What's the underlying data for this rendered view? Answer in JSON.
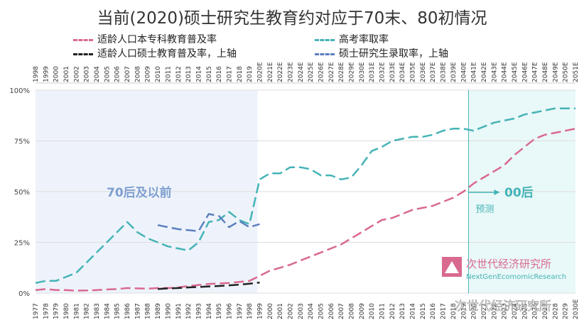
{
  "title": "当前(2020)硕士研究生教育约对应于70末、80初情况",
  "legend": [
    {
      "label": "适龄人口本专科教育普及率",
      "color": "#d9698f"
    },
    {
      "label": "高考率取率",
      "color": "#45b3b6"
    },
    {
      "label": "适龄人口硕士教育普及率，上轴",
      "color": "#222222"
    },
    {
      "label": "硕士研究生录取率，上轴",
      "color": "#5b7fbf"
    }
  ],
  "annotations": {
    "era_left": "70后及以前",
    "era_right": "00后",
    "forecast": "预测"
  },
  "watermark": {
    "name": "次世代经济研究所",
    "sub": "NextGenEcomomicResearch",
    "overlay": "次世代经济研究所"
  },
  "chart_data": {
    "type": "line",
    "title": "当前(2020)硕士研究生教育约对应于70末、80初情况",
    "y_ticks": [
      "0%",
      "25%",
      "50%",
      "75%",
      "100%"
    ],
    "ylim": [
      0,
      100
    ],
    "x_bottom_labels": [
      "1977",
      "1978",
      "1979",
      "1980",
      "1981",
      "1982",
      "1983",
      "1984",
      "1985",
      "1986",
      "1987",
      "1988",
      "1989",
      "1990",
      "1991",
      "1992",
      "1993",
      "1994",
      "1995",
      "1996",
      "1997",
      "1998",
      "1999",
      "2000",
      "2001",
      "2002",
      "2003",
      "2004",
      "2005",
      "2006",
      "2007",
      "2008",
      "2009",
      "2010",
      "2011",
      "2012",
      "2013",
      "2014",
      "2015",
      "2016",
      "2017",
      "2018",
      "2019",
      "2020",
      "2021",
      "2022",
      "2023",
      "2024",
      "2025",
      "2026",
      "2027",
      "2028",
      "2029",
      "2030E"
    ],
    "x_top_labels": [
      "1998",
      "1999",
      "2000",
      "2001",
      "2002",
      "2003",
      "2004",
      "2005",
      "2006",
      "2007",
      "2008",
      "2009",
      "2010",
      "2011",
      "2012",
      "2013",
      "2014",
      "2015",
      "2016",
      "2017",
      "2018",
      "2019",
      "2020E",
      "2021E",
      "2022E",
      "2023E",
      "2024E",
      "2025E",
      "2026E",
      "2027E",
      "2028E",
      "2029E",
      "2030E",
      "2031E",
      "2032E",
      "2033E",
      "2034E",
      "2035E",
      "2036E",
      "2037E",
      "2038E",
      "2039E",
      "2040E",
      "2041E",
      "2042E",
      "2043E",
      "2044E",
      "2045E",
      "2046E",
      "2047E",
      "2048E",
      "2049E",
      "2050E",
      "2051E"
    ],
    "forecast_start_index": 43,
    "series": [
      {
        "name": "适龄人口本专科教育普及率",
        "color": "#d9698f",
        "start_index": 0,
        "values": [
          1.5,
          2.0,
          1.5,
          1.5,
          1.2,
          1.3,
          1.5,
          1.8,
          2.0,
          2.5,
          2.3,
          2.2,
          2.5,
          2.5,
          2.8,
          3.5,
          4.0,
          4.5,
          4.8,
          5.0,
          5.5,
          6.0,
          8.5,
          11,
          12.5,
          14,
          16,
          18,
          20,
          22,
          24,
          27,
          30,
          33,
          36,
          37,
          39,
          41,
          42,
          43,
          45,
          47,
          50,
          54,
          57,
          60,
          63,
          68,
          72,
          76,
          78,
          79,
          80,
          81
        ]
      },
      {
        "name": "高考率取率",
        "color": "#45b3b6",
        "start_index": 0,
        "values": [
          5,
          6,
          6,
          8,
          10,
          15,
          20,
          25,
          30,
          35,
          30,
          27,
          25,
          23,
          22,
          21,
          25,
          35,
          36,
          40,
          36,
          34,
          56,
          59,
          59,
          62,
          62,
          61,
          58,
          58,
          56,
          57,
          63,
          70,
          72,
          75,
          76,
          77,
          77,
          78,
          80,
          81,
          81,
          80,
          82,
          84,
          85,
          86,
          88,
          89,
          90,
          91,
          91,
          91
        ]
      },
      {
        "name": "适龄人口硕士教育普及率，上轴",
        "color": "#222222",
        "start_index": 12,
        "values": [
          2.0,
          2.3,
          2.5,
          2.8,
          3.0,
          3.3,
          3.5,
          3.8,
          4.2,
          4.6,
          5.2
        ]
      },
      {
        "name": "硕士研究生录取率，上轴",
        "color": "#5b7fbf",
        "start_index": 12,
        "values": [
          33.5,
          32.5,
          31.5,
          31,
          30.5,
          39,
          38,
          32.5,
          35.5,
          32.5,
          34
        ]
      }
    ]
  }
}
